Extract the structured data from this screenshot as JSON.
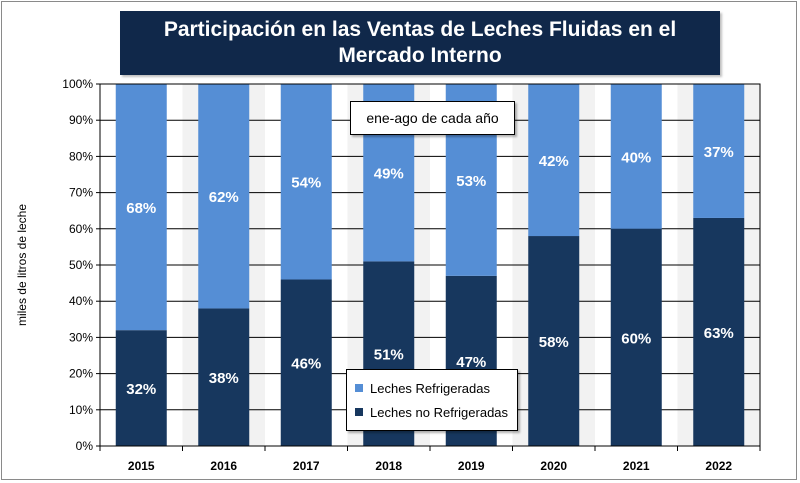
{
  "chart_data": {
    "type": "bar",
    "stacked": true,
    "title": "Participación en las Ventas de Leches Fluidas en el Mercado Interno",
    "ylabel": "miles de litros de leche",
    "xlabel": "",
    "annotation": "ene-ago de cada año",
    "categories": [
      "2015",
      "2016",
      "2017",
      "2018",
      "2019",
      "2020",
      "2021",
      "2022"
    ],
    "ylim": [
      0,
      100
    ],
    "yticks": [
      "0%",
      "10%",
      "20%",
      "30%",
      "40%",
      "50%",
      "60%",
      "70%",
      "80%",
      "90%",
      "100%"
    ],
    "grid": true,
    "legend_position": "bottom-center",
    "series": [
      {
        "name": "Leches no Refrigeradas",
        "color": "#17375e",
        "values": [
          32,
          38,
          46,
          51,
          47,
          58,
          60,
          63
        ],
        "labels": [
          "32%",
          "38%",
          "46%",
          "51%",
          "47%",
          "58%",
          "60%",
          "63%"
        ]
      },
      {
        "name": "Leches Refrigeradas",
        "color": "#558ed5",
        "values": [
          68,
          62,
          54,
          49,
          53,
          42,
          40,
          37
        ],
        "labels": [
          "68%",
          "62%",
          "54%",
          "49%",
          "53%",
          "42%",
          "40%",
          "37%"
        ]
      }
    ],
    "title_background": "#10284a",
    "plot_background": "#ffffff",
    "stripe_color": "#f2f2f2"
  }
}
